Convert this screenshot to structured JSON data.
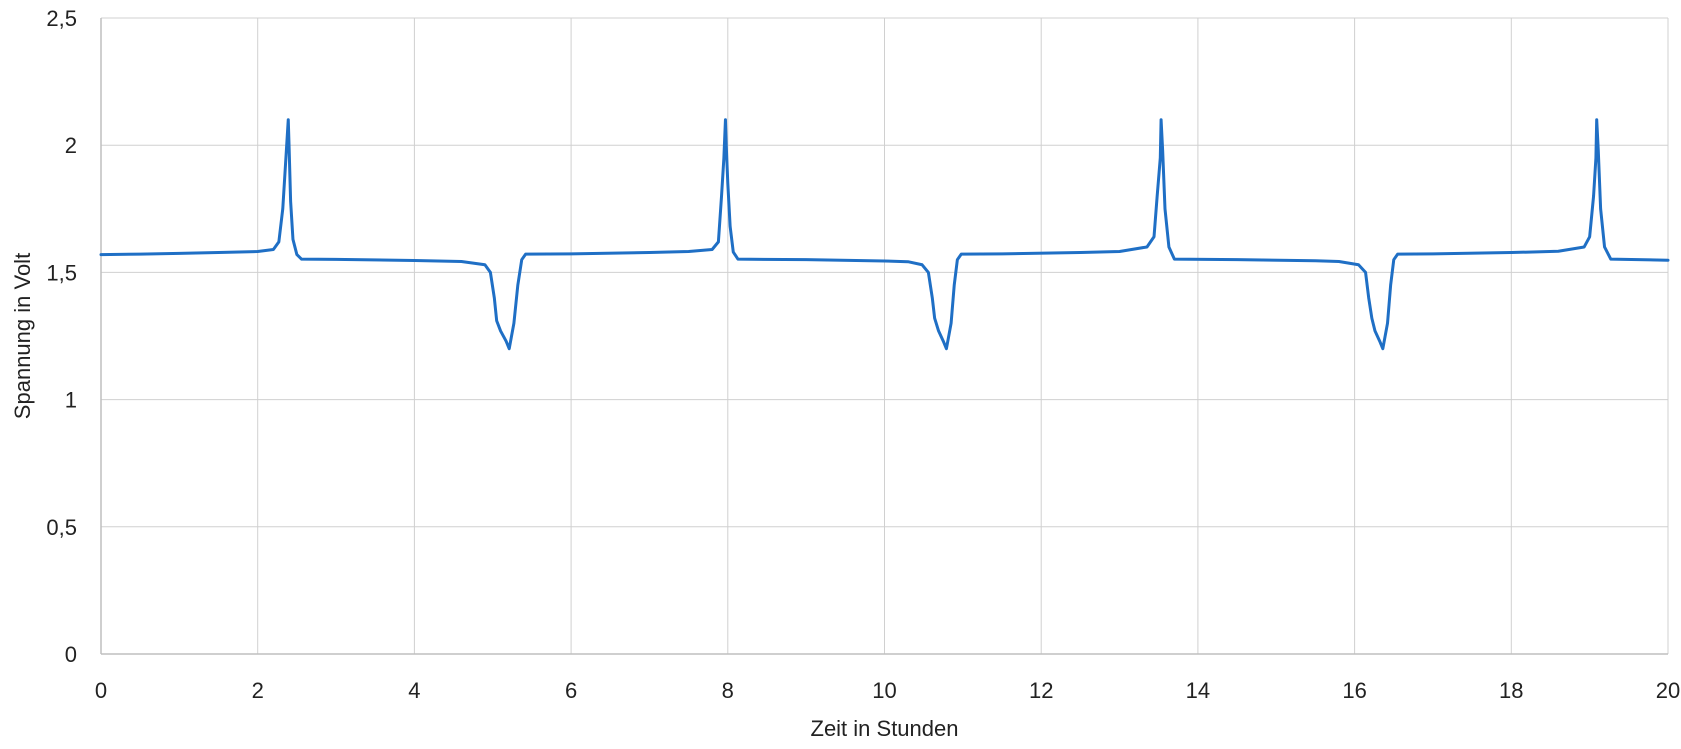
{
  "chart_data": {
    "type": "line",
    "title": "",
    "xlabel": "Zeit in Stunden",
    "ylabel": "Spannung in Volt",
    "xlim": [
      0,
      20
    ],
    "ylim": [
      0,
      2.5
    ],
    "grid": true,
    "legend": "none",
    "colors": {
      "line": "#1f6fc5",
      "grid": "#d0d0d0",
      "axis": "#bfbfbf"
    },
    "x_ticks": [
      {
        "value": 0,
        "label": "0"
      },
      {
        "value": 2,
        "label": "2"
      },
      {
        "value": 4,
        "label": "4"
      },
      {
        "value": 6,
        "label": "6"
      },
      {
        "value": 8,
        "label": "8"
      },
      {
        "value": 10,
        "label": "10"
      },
      {
        "value": 12,
        "label": "12"
      },
      {
        "value": 14,
        "label": "14"
      },
      {
        "value": 16,
        "label": "16"
      },
      {
        "value": 18,
        "label": "18"
      },
      {
        "value": 20,
        "label": "20"
      }
    ],
    "y_ticks": [
      {
        "value": 0,
        "label": "0"
      },
      {
        "value": 0.5,
        "label": "0,5"
      },
      {
        "value": 1,
        "label": "1"
      },
      {
        "value": 1.5,
        "label": "1,5"
      },
      {
        "value": 2,
        "label": "2"
      },
      {
        "value": 2.5,
        "label": "2,5"
      }
    ],
    "series": [
      {
        "x": [
          0,
          0.5,
          1.0,
          1.5,
          2.0,
          2.2,
          2.27,
          2.32,
          2.36,
          2.39,
          2.4,
          2.42,
          2.45,
          2.5,
          2.56,
          3.0,
          4.0,
          4.6,
          4.9,
          4.97,
          5.02,
          5.05,
          5.1,
          5.17,
          5.21,
          5.27,
          5.32,
          5.37,
          5.42,
          6.0,
          7.0,
          7.5,
          7.8,
          7.88,
          7.92,
          7.95,
          7.97,
          7.98,
          8.0,
          8.03,
          8.07,
          8.13,
          9.0,
          10.0,
          10.3,
          10.48,
          10.56,
          10.61,
          10.64,
          10.69,
          10.75,
          10.79,
          10.85,
          10.89,
          10.93,
          10.98,
          11.5,
          12.5,
          13.0,
          13.35,
          13.44,
          13.48,
          13.52,
          13.53,
          13.55,
          13.58,
          13.63,
          13.7,
          14.5,
          15.5,
          15.8,
          16.05,
          16.14,
          16.18,
          16.22,
          16.26,
          16.32,
          16.36,
          16.42,
          16.46,
          16.5,
          16.55,
          17.0,
          18.0,
          18.6,
          18.93,
          19.0,
          19.05,
          19.08,
          19.09,
          19.11,
          19.14,
          19.19,
          19.27,
          20.0
        ],
        "y": [
          1.57,
          1.572,
          1.575,
          1.578,
          1.582,
          1.59,
          1.62,
          1.75,
          1.95,
          2.1,
          2.0,
          1.78,
          1.63,
          1.57,
          1.552,
          1.551,
          1.547,
          1.543,
          1.53,
          1.5,
          1.4,
          1.31,
          1.27,
          1.23,
          1.2,
          1.3,
          1.45,
          1.55,
          1.572,
          1.573,
          1.578,
          1.582,
          1.59,
          1.62,
          1.8,
          1.95,
          2.1,
          2.0,
          1.85,
          1.68,
          1.58,
          1.552,
          1.55,
          1.545,
          1.542,
          1.53,
          1.5,
          1.4,
          1.32,
          1.27,
          1.23,
          1.2,
          1.3,
          1.45,
          1.55,
          1.572,
          1.573,
          1.578,
          1.582,
          1.6,
          1.64,
          1.8,
          1.95,
          2.1,
          1.98,
          1.75,
          1.6,
          1.552,
          1.55,
          1.546,
          1.543,
          1.53,
          1.5,
          1.4,
          1.32,
          1.27,
          1.23,
          1.2,
          1.3,
          1.45,
          1.55,
          1.572,
          1.573,
          1.578,
          1.583,
          1.6,
          1.64,
          1.8,
          1.95,
          2.1,
          1.98,
          1.75,
          1.6,
          1.552,
          1.548
        ]
      }
    ]
  }
}
